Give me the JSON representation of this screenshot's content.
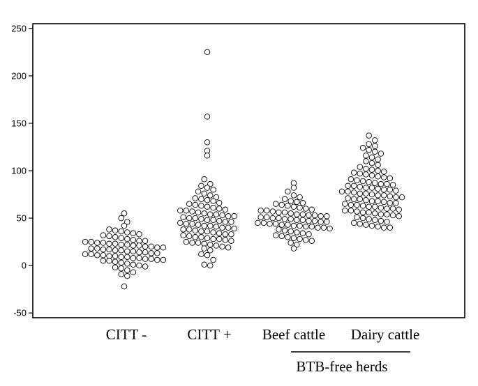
{
  "chart_data": {
    "type": "scatter",
    "subtype": "beeswarm",
    "title": "",
    "xlabel": "",
    "ylabel": "",
    "ylim": [
      -55,
      255
    ],
    "yticks": [
      -50,
      0,
      50,
      100,
      150,
      200,
      250
    ],
    "grid": false,
    "categories": [
      "CITT -",
      "CITT +",
      "Beef cattle",
      "Dairy cattle"
    ],
    "group_label": "BTB-free herds",
    "group_members": [
      "Beef cattle",
      "Dairy cattle"
    ],
    "series": [
      {
        "category": "CITT -",
        "values": [
          55,
          50,
          46,
          42,
          38,
          37,
          36,
          35,
          34,
          33,
          32,
          31,
          30,
          29,
          28,
          27,
          26,
          26,
          25,
          25,
          24,
          24,
          23,
          23,
          22,
          22,
          21,
          21,
          20,
          20,
          19,
          19,
          18,
          18,
          17,
          17,
          16,
          16,
          15,
          15,
          14,
          14,
          13,
          13,
          12,
          12,
          11,
          11,
          10,
          10,
          9,
          9,
          8,
          8,
          7,
          7,
          6,
          6,
          5,
          5,
          4,
          3,
          2,
          1,
          0,
          -1,
          -2,
          -3,
          -5,
          -7,
          -9,
          -11,
          -22
        ]
      },
      {
        "category": "CITT +",
        "values": [
          225,
          157,
          130,
          121,
          116,
          91,
          86,
          84,
          82,
          80,
          78,
          76,
          74,
          72,
          71,
          70,
          69,
          68,
          66,
          65,
          64,
          63,
          62,
          61,
          60,
          59,
          58,
          58,
          57,
          56,
          55,
          54,
          54,
          53,
          52,
          52,
          51,
          50,
          50,
          49,
          48,
          48,
          47,
          46,
          46,
          45,
          44,
          44,
          43,
          42,
          42,
          41,
          40,
          40,
          39,
          38,
          38,
          37,
          36,
          36,
          35,
          34,
          33,
          33,
          32,
          31,
          30,
          30,
          29,
          28,
          28,
          27,
          26,
          25,
          24,
          24,
          23,
          22,
          21,
          20,
          19,
          18,
          16,
          12,
          11,
          6,
          1,
          0
        ]
      },
      {
        "category": "Beef cattle",
        "values": [
          87,
          82,
          78,
          74,
          72,
          70,
          68,
          67,
          66,
          65,
          64,
          63,
          62,
          61,
          60,
          59,
          58,
          58,
          57,
          56,
          56,
          55,
          54,
          54,
          53,
          53,
          52,
          52,
          51,
          51,
          50,
          50,
          49,
          49,
          48,
          48,
          47,
          47,
          46,
          46,
          45,
          45,
          44,
          44,
          43,
          43,
          42,
          42,
          41,
          41,
          40,
          40,
          39,
          38,
          37,
          36,
          35,
          34,
          33,
          32,
          31,
          30,
          29,
          28,
          27,
          26,
          24,
          22,
          18
        ]
      },
      {
        "category": "Dairy cattle",
        "values": [
          137,
          132,
          128,
          126,
          124,
          122,
          120,
          118,
          116,
          114,
          112,
          110,
          108,
          106,
          104,
          102,
          101,
          100,
          99,
          98,
          97,
          96,
          95,
          94,
          93,
          92,
          91,
          90,
          89,
          88,
          87,
          86,
          86,
          85,
          84,
          84,
          83,
          82,
          82,
          81,
          80,
          80,
          79,
          78,
          78,
          77,
          76,
          76,
          75,
          74,
          74,
          73,
          72,
          72,
          71,
          70,
          70,
          69,
          68,
          68,
          67,
          66,
          66,
          65,
          64,
          64,
          63,
          62,
          62,
          61,
          60,
          60,
          59,
          58,
          58,
          57,
          56,
          56,
          55,
          54,
          54,
          53,
          52,
          51,
          50,
          49,
          48,
          47,
          46,
          45,
          44,
          43,
          42,
          41,
          40,
          40
        ]
      }
    ]
  }
}
